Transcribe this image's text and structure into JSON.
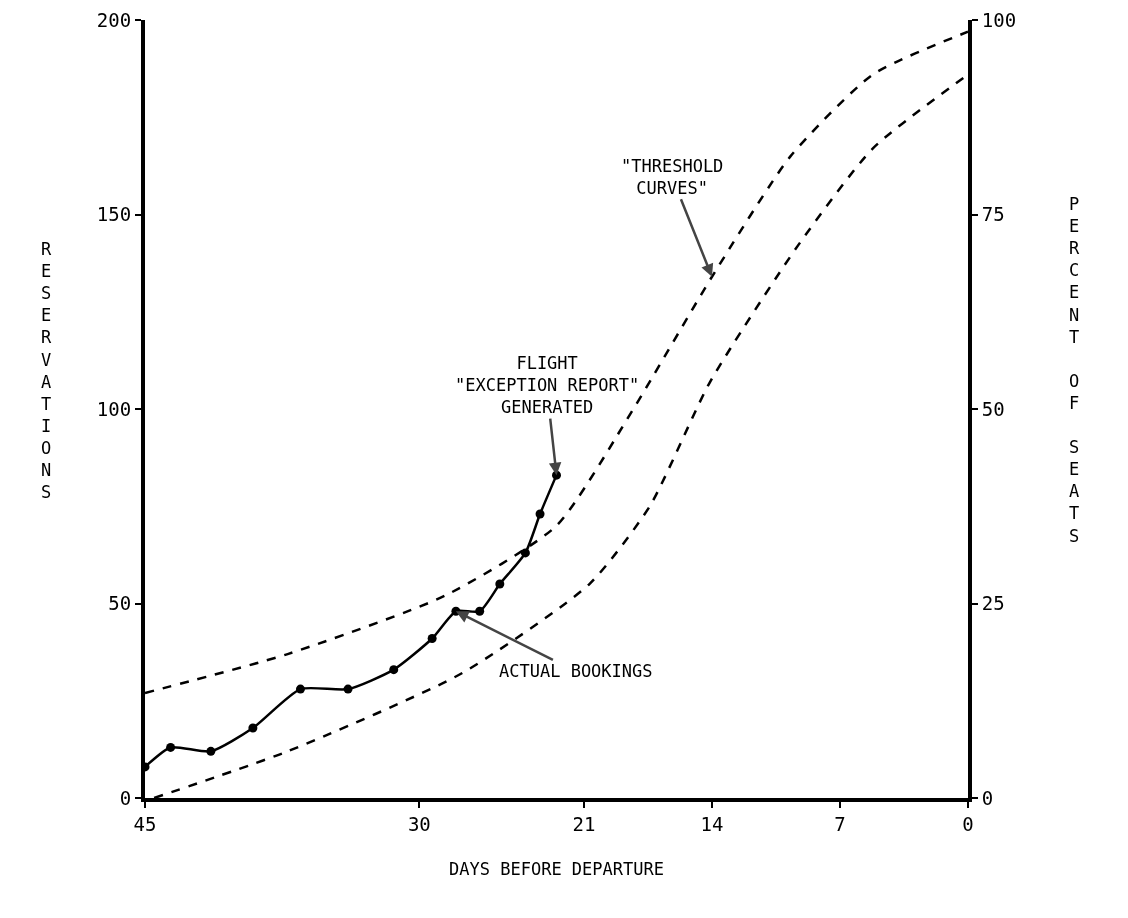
{
  "chart_data": {
    "type": "line",
    "xlabel": "DAYS BEFORE DEPARTURE",
    "ylabel": "RESERVATIONS",
    "y2label": "PERCENT OF SEATS",
    "xlim": [
      45,
      0
    ],
    "xticks": [
      45,
      30,
      21,
      14,
      7,
      0
    ],
    "ylim": [
      0,
      200
    ],
    "yticks": [
      0,
      50,
      100,
      150,
      200
    ],
    "y2lim": [
      0,
      100
    ],
    "y2ticks": [
      0,
      25,
      50,
      75,
      100
    ],
    "grid": false,
    "series": [
      {
        "color": "#000000",
        "marker": "none",
        "line_style": "dashed",
        "x": [
          45,
          37.2,
          28.6,
          22.5,
          18.3,
          14,
          9.7,
          5.2,
          0
        ],
        "values": [
          27,
          37,
          52,
          70,
          100,
          134,
          165,
          186,
          197
        ]
      },
      {
        "color": "#000000",
        "marker": "none",
        "line_style": "dashed",
        "x": [
          44.5,
          37.2,
          27.7,
          20.7,
          17.4,
          14.1,
          9.3,
          5.2,
          0
        ],
        "values": [
          0,
          12,
          32,
          55,
          75,
          107,
          142,
          167,
          186
        ]
      },
      {
        "color": "#000000",
        "marker": "circle",
        "line_style": "solid",
        "x": [
          45,
          43.6,
          41.4,
          39.1,
          36.5,
          33.9,
          31.4,
          29.3,
          28,
          26.7,
          25.6,
          24.2,
          23.4,
          22.5
        ],
        "values": [
          8,
          13,
          12,
          18,
          28,
          28,
          33,
          41,
          48,
          48,
          55,
          63,
          73,
          83
        ]
      }
    ],
    "annotations": [
      {
        "text": "FLIGHT\n\"EXCEPTION REPORT\"\nGENERATED",
        "x": 22.5,
        "y": 83
      },
      {
        "text": "ACTUAL BOOKINGS",
        "x": 28,
        "y": 48
      },
      {
        "text": "\"THRESHOLD\nCURVES\"",
        "x": 14,
        "y": 134
      }
    ]
  }
}
